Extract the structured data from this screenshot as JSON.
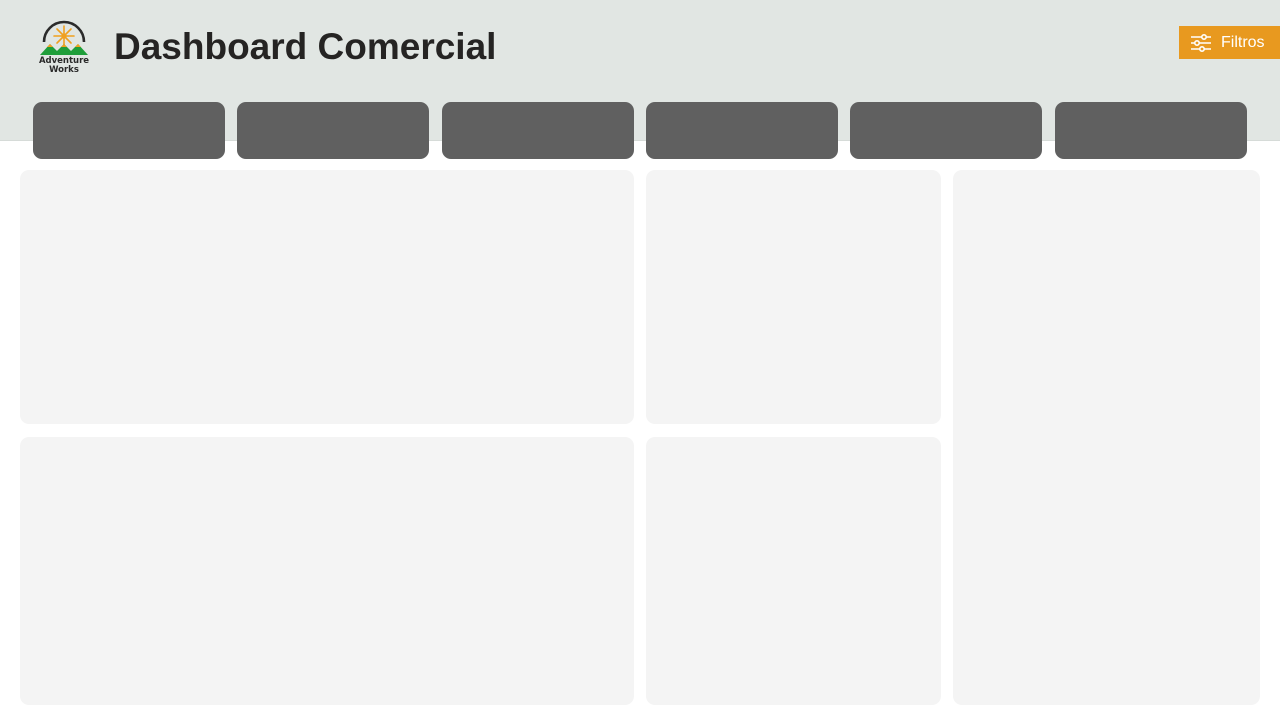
{
  "header": {
    "title": "Dashboard Comercial",
    "logo": {
      "line1": "Adventure",
      "line2": "Works",
      "icon": "adventure-works-logo-icon",
      "colors": {
        "ring": "#2b2b2b",
        "sun": "#f0a020",
        "mountains": "#1f9e3a"
      }
    },
    "filter_button": {
      "label": "Filtros",
      "icon": "sliders-icon",
      "color": "#e8991f"
    },
    "background_color": "#e1e6e3"
  },
  "kpi_cards": [
    {
      "id": "kpi-1"
    },
    {
      "id": "kpi-2"
    },
    {
      "id": "kpi-3"
    },
    {
      "id": "kpi-4"
    },
    {
      "id": "kpi-5"
    },
    {
      "id": "kpi-6"
    }
  ],
  "kpi_card_color": "#606060",
  "panel_color": "#f4f4f4"
}
